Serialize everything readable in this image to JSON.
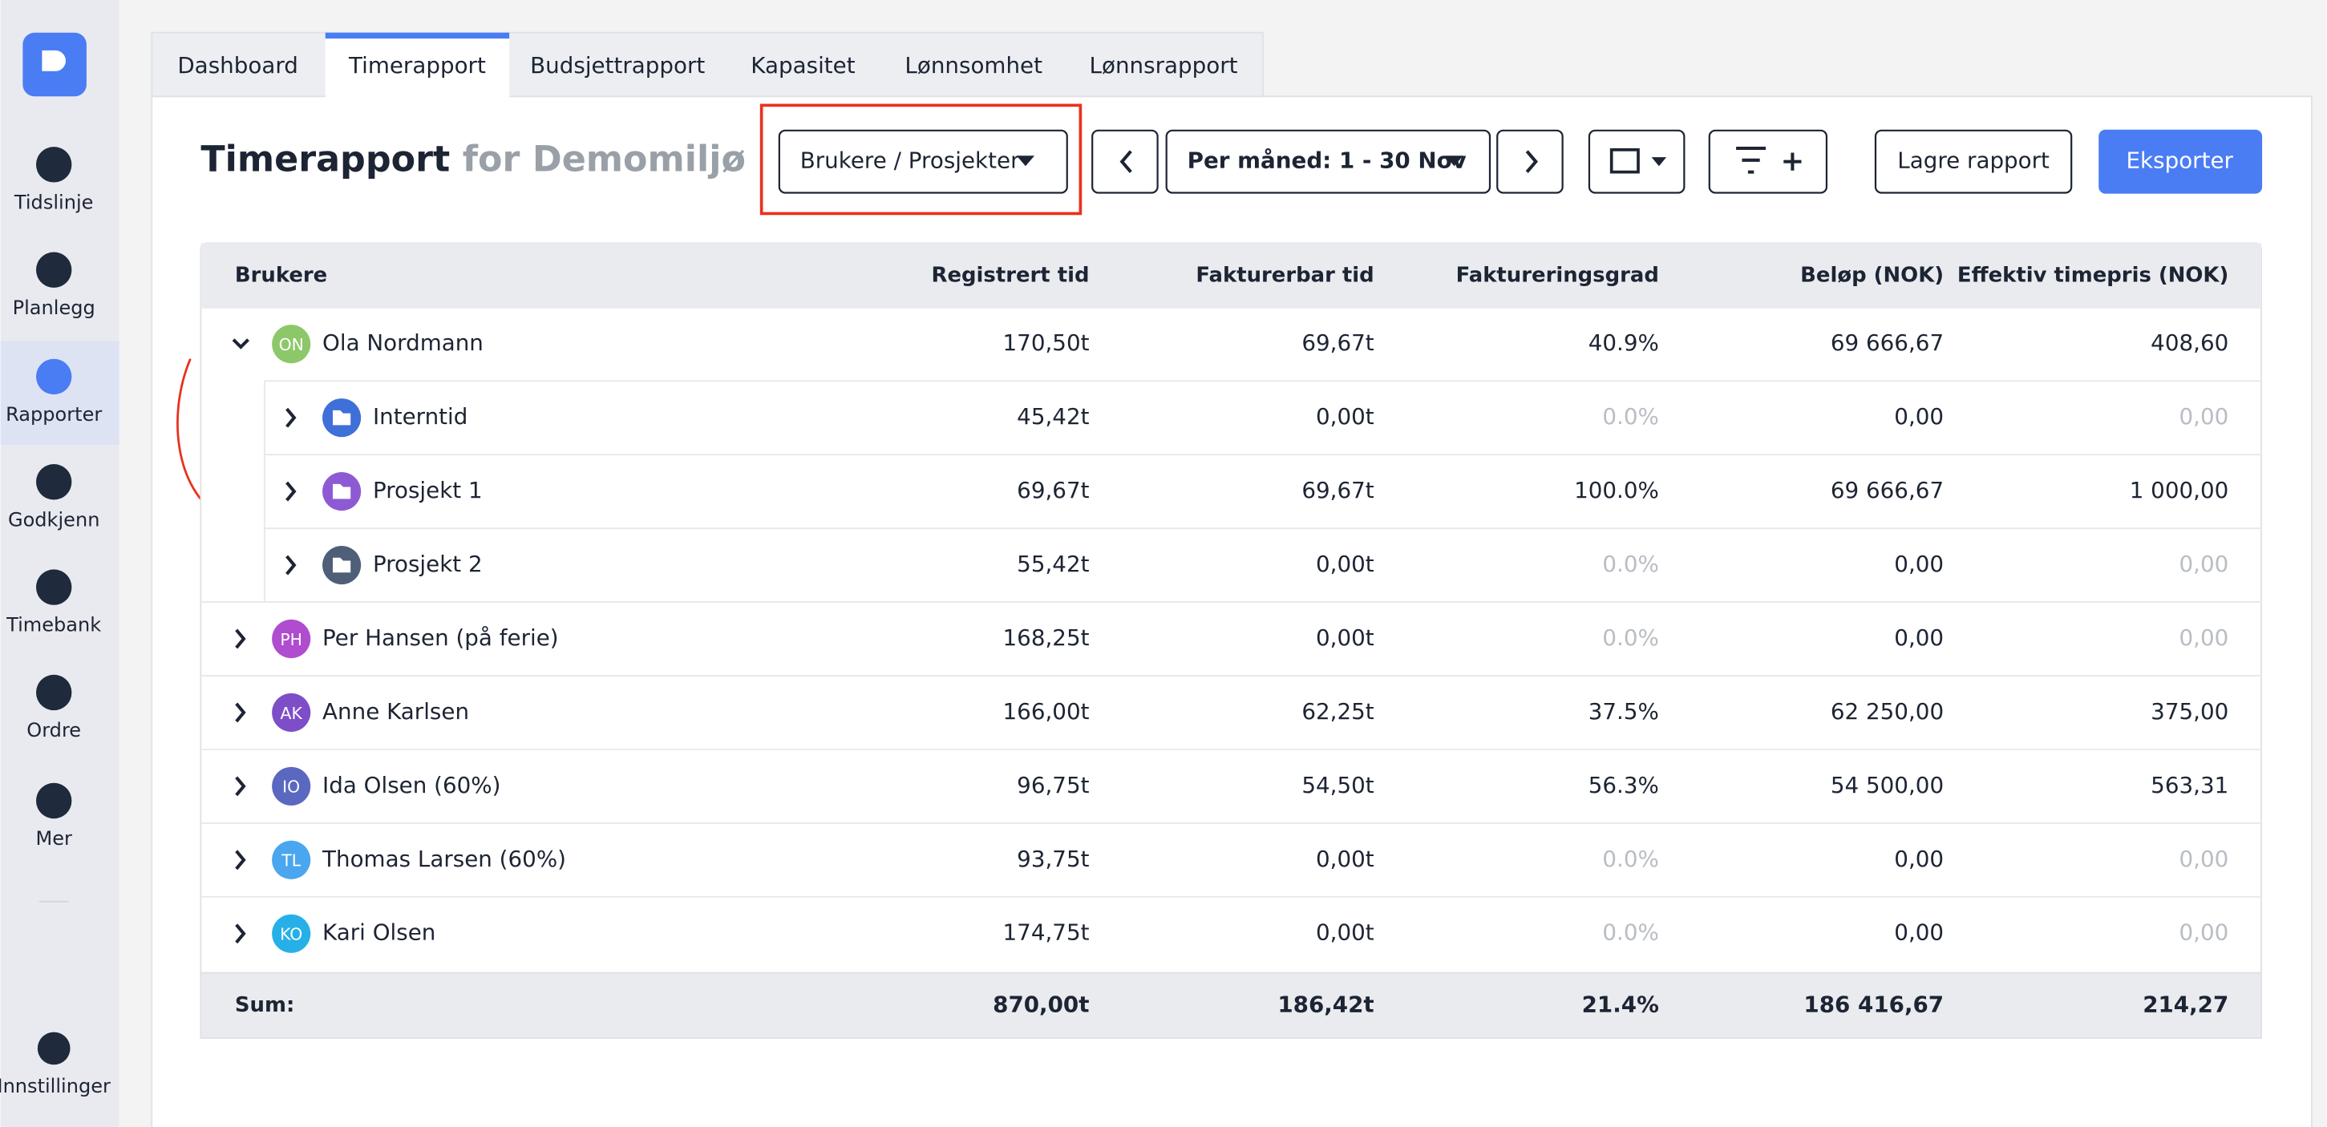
{
  "sidebar": {
    "items": [
      "Tidslinje",
      "Planlegg",
      "Rapporter",
      "Godkjenn",
      "Timebank",
      "Ordre",
      "Mer"
    ],
    "settings": "Innstillinger"
  },
  "tabs": [
    "Dashboard",
    "Timerapport",
    "Budsjettrapport",
    "Kapasitet",
    "Lønnsomhet",
    "Lønnsrapport"
  ],
  "header": {
    "title": "Timerapport",
    "subtitle": "for Demomiljø"
  },
  "controls": {
    "grouping": "Brukere / Prosjekter",
    "period": "Per måned: 1 - 30 Nov",
    "save": "Lagre rapport",
    "export": "Eksporter"
  },
  "table": {
    "columns": [
      "Brukere",
      "Registrert tid",
      "Fakturerbar tid",
      "Faktureringsgrad",
      "Beløp (NOK)",
      "Effektiv timepris (NOK)"
    ],
    "rows": [
      {
        "initials": "ON",
        "color": "#8cc86a",
        "name": "Ola Nordmann",
        "cells": [
          "170,50t",
          "69,67t",
          "40.9%",
          "69 666,67",
          "408,60"
        ]
      },
      {
        "color": "#3f6fd8",
        "name": "Interntid",
        "cells": [
          "45,42t",
          "0,00t",
          "0.0%",
          "0,00",
          "0,00"
        ]
      },
      {
        "color": "#8e5ad4",
        "name": "Prosjekt 1",
        "cells": [
          "69,67t",
          "69,67t",
          "100.0%",
          "69 666,67",
          "1 000,00"
        ]
      },
      {
        "color": "#4f5f78",
        "name": "Prosjekt 2",
        "cells": [
          "55,42t",
          "0,00t",
          "0.0%",
          "0,00",
          "0,00"
        ]
      },
      {
        "initials": "PH",
        "color": "#b04ccf",
        "name": "Per Hansen (på ferie)",
        "cells": [
          "168,25t",
          "0,00t",
          "0.0%",
          "0,00",
          "0,00"
        ]
      },
      {
        "initials": "AK",
        "color": "#7d4ec8",
        "name": "Anne Karlsen",
        "cells": [
          "166,00t",
          "62,25t",
          "37.5%",
          "62 250,00",
          "375,00"
        ]
      },
      {
        "initials": "IO",
        "color": "#5a68c0",
        "name": "Ida Olsen (60%)",
        "cells": [
          "96,75t",
          "54,50t",
          "56.3%",
          "54 500,00",
          "563,31"
        ]
      },
      {
        "initials": "TL",
        "color": "#4aa6ee",
        "name": "Thomas Larsen (60%)",
        "cells": [
          "93,75t",
          "0,00t",
          "0.0%",
          "0,00",
          "0,00"
        ]
      },
      {
        "initials": "KO",
        "color": "#27b0e8",
        "name": "Kari Olsen",
        "cells": [
          "174,75t",
          "0,00t",
          "0.0%",
          "0,00",
          "0,00"
        ]
      }
    ],
    "sum": {
      "label": "Sum:",
      "cells": [
        "870,00t",
        "186,42t",
        "21.4%",
        "186 416,67",
        "214,27"
      ]
    }
  }
}
